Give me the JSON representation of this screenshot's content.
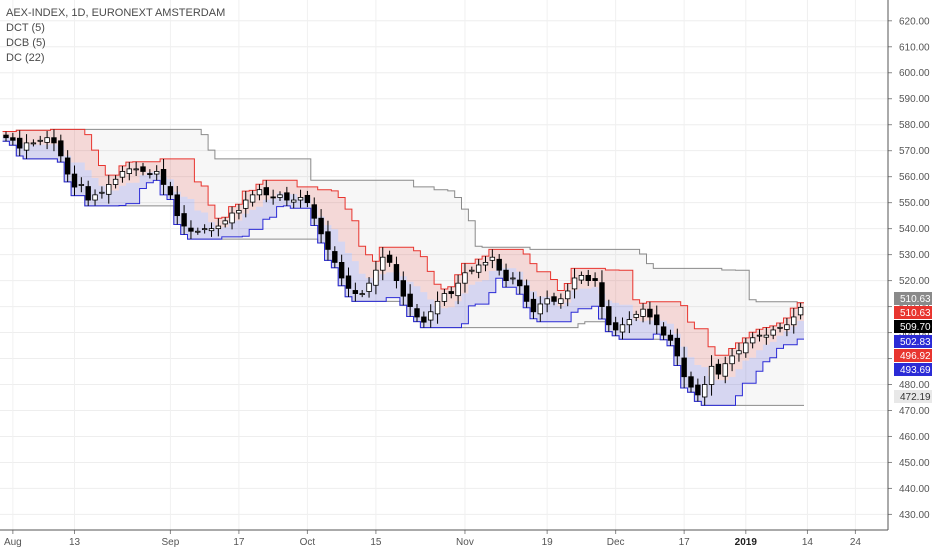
{
  "legend": {
    "title": "AEX-INDEX, 1D, EURONEXT AMSTERDAM",
    "line1": "DCT (5)",
    "line2": "DCB (5)",
    "line3": "DC (22)"
  },
  "chart_data": {
    "type": "candlestick",
    "title": "AEX-INDEX, 1D, EURONEXT AMSTERDAM",
    "ylim": [
      424,
      628
    ],
    "y_ticks": [
      430,
      440,
      450,
      460,
      470,
      480,
      490,
      500,
      510,
      520,
      530,
      540,
      550,
      560,
      570,
      580,
      590,
      600,
      610,
      620
    ],
    "y_tick_labels": [
      "430.00",
      "440.00",
      "450.00",
      "460.00",
      "470.00",
      "480.00",
      "490.00",
      "500.00",
      "510.00",
      "520.00",
      "530.00",
      "540.00",
      "550.00",
      "560.00",
      "570.00",
      "580.00",
      "590.00",
      "600.00",
      "610.00",
      "620.00"
    ],
    "x_ticks": [
      {
        "label": "Aug",
        "index": 1,
        "bold": false
      },
      {
        "label": "13",
        "index": 10,
        "bold": false
      },
      {
        "label": "Sep",
        "index": 24,
        "bold": false
      },
      {
        "label": "17",
        "index": 34,
        "bold": false
      },
      {
        "label": "Oct",
        "index": 44,
        "bold": false
      },
      {
        "label": "15",
        "index": 54,
        "bold": false
      },
      {
        "label": "Nov",
        "index": 67,
        "bold": false
      },
      {
        "label": "19",
        "index": 79,
        "bold": false
      },
      {
        "label": "Dec",
        "index": 89,
        "bold": false
      },
      {
        "label": "17",
        "index": 99,
        "bold": false
      },
      {
        "label": "2019",
        "index": 108,
        "bold": true
      },
      {
        "label": "14",
        "index": 117,
        "bold": false
      },
      {
        "label": "24",
        "index": 124,
        "bold": false
      }
    ],
    "closes": [
      575,
      574,
      571,
      573,
      573,
      574,
      575,
      573,
      568,
      561,
      556,
      557,
      551,
      553,
      554,
      557,
      559,
      562,
      563,
      563,
      562,
      561,
      562,
      557,
      553,
      545,
      541,
      539,
      539,
      540,
      540,
      541,
      543,
      546,
      547,
      551,
      553,
      555,
      553,
      552,
      553,
      551,
      551,
      552,
      550,
      544,
      538,
      532,
      527,
      521,
      517,
      515,
      515,
      519,
      524,
      529,
      527,
      520,
      514,
      510,
      506,
      504,
      508,
      512,
      515,
      515,
      519,
      523,
      524,
      526,
      527,
      529,
      524,
      520,
      521,
      518,
      512,
      508,
      511,
      513,
      512,
      513,
      516,
      521,
      522,
      520,
      520,
      510,
      503,
      501,
      503,
      505,
      507,
      509,
      506,
      503,
      499,
      497,
      491,
      483,
      479,
      476,
      480,
      487,
      484,
      488,
      491,
      493,
      496,
      498,
      499,
      499,
      501,
      502,
      503,
      506,
      509.7
    ],
    "tags": [
      {
        "label": "510.63",
        "value": 510.63,
        "color": "#8a8a8a"
      },
      {
        "label": "510.63",
        "value": 510.63,
        "color": "#e8352f"
      },
      {
        "label": "509.70",
        "value": 509.7,
        "color": "#000000"
      },
      {
        "label": "502.83",
        "value": 502.83,
        "color": "#2b2bd6"
      },
      {
        "label": "496.92",
        "value": 496.92,
        "color": "#e8352f"
      },
      {
        "label": "493.69",
        "value": 493.69,
        "color": "#2b2bd6"
      },
      {
        "label": "472.19",
        "value": 472.19,
        "color": "#e8e8e8"
      }
    ],
    "series": [
      {
        "name": "DCT (5)",
        "color": "#e8352f"
      },
      {
        "name": "DCB (5)",
        "color": "#2b2bd6"
      },
      {
        "name": "DC (22)",
        "color": "#8a8a8a"
      }
    ],
    "grid": true,
    "y_axis_position": "right",
    "legend_position": "top-left"
  }
}
